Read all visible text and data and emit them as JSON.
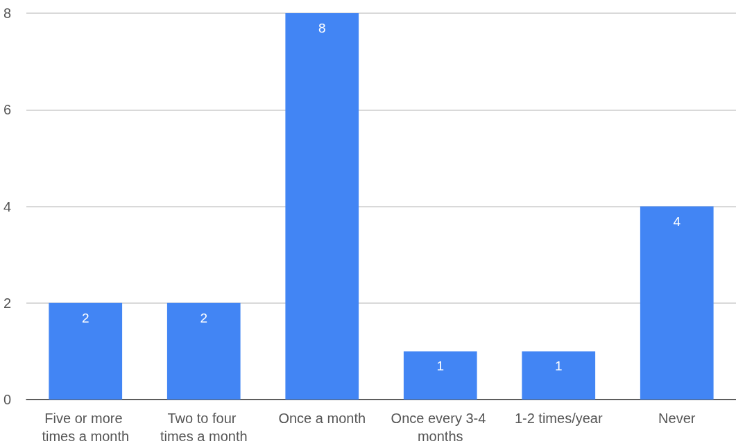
{
  "chart_data": {
    "type": "bar",
    "categories": [
      "Five or more times a month",
      "Two to four times a month",
      "Once a month",
      "Once every 3-4 months",
      "1-2 times/year",
      "Never"
    ],
    "values": [
      2,
      2,
      8,
      1,
      1,
      4
    ],
    "color": "#4285f4",
    "ylim": [
      0,
      8
    ],
    "yticks": [
      0,
      2,
      4,
      6,
      8
    ],
    "grid": "y",
    "data_labels": true
  }
}
